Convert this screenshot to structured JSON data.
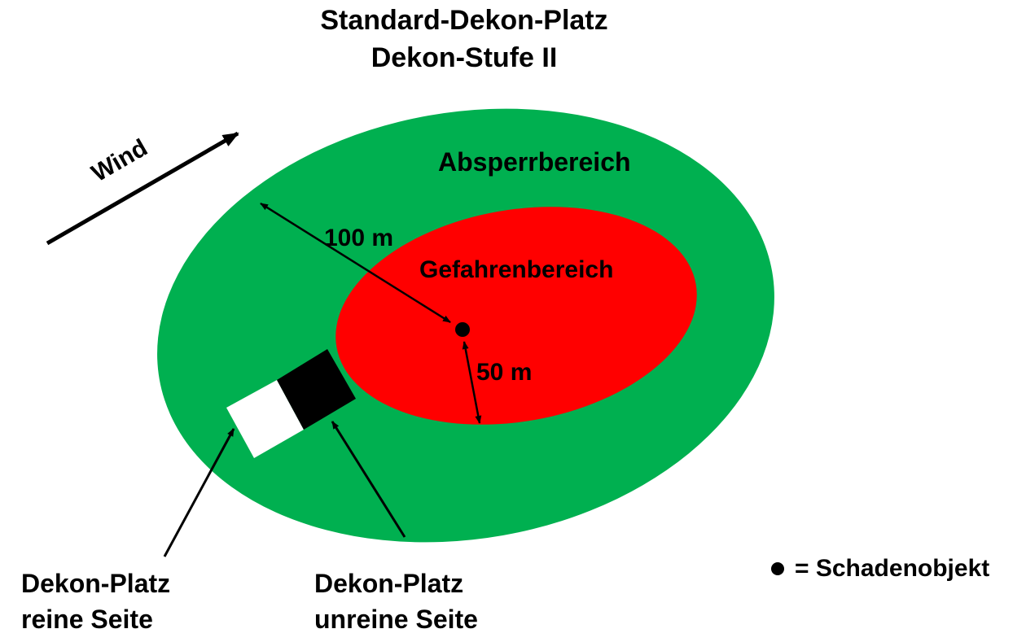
{
  "title": {
    "line1": "Standard-Dekon-Platz",
    "line2": "Dekon-Stufe II"
  },
  "wind": {
    "label": "Wind"
  },
  "zones": {
    "outer": {
      "label": "Absperrbereich",
      "color": "#00b050",
      "distance_label": "100 m"
    },
    "inner": {
      "label": "Gefahrenbereich",
      "color": "#ff0000",
      "distance_label": "50 m"
    }
  },
  "decon_site": {
    "clean_side": {
      "line1": "Dekon-Platz",
      "line2": "reine Seite",
      "color": "#ffffff"
    },
    "unclean_side": {
      "line1": "Dekon-Platz",
      "line2": "unreine Seite",
      "color": "#000000"
    }
  },
  "legend": {
    "marker_label": "= Schadenobjekt"
  }
}
